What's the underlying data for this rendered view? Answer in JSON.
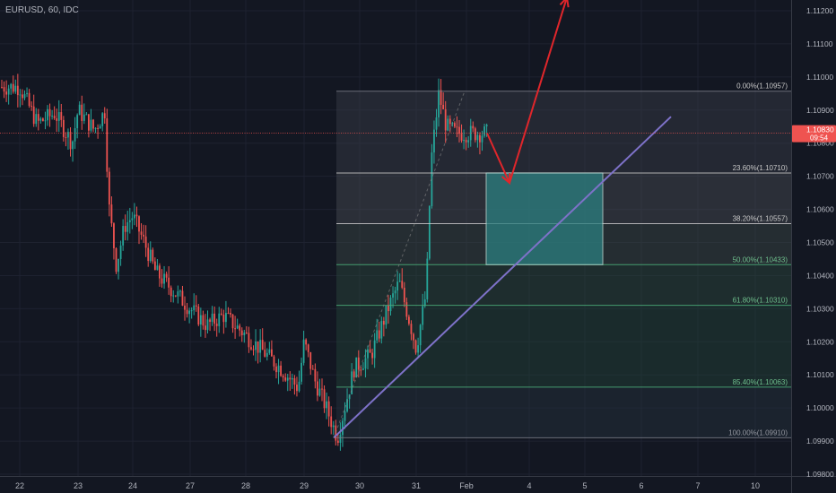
{
  "header": {
    "symbol": "EURUSD, 60, IDC"
  },
  "price_tag": {
    "price": "1.10830",
    "countdown": "09:54"
  },
  "colors": {
    "background": "#131722",
    "grid": "#1e2230",
    "axis_text": "#b2b5be",
    "bull": "#26a69a",
    "bear": "#ef5350",
    "price_line": "#ef5350",
    "trendline": "#7e72c9",
    "arrow": "#e0262b",
    "target_box": "#2b7f80",
    "fib_line": "#6b7280",
    "fib_text": "#8f949d"
  },
  "chart_data": {
    "type": "candlestick",
    "title": "",
    "x_ticks": [
      "22",
      "23",
      "24",
      "27",
      "28",
      "29",
      "30",
      "31",
      "Feb",
      "4",
      "5",
      "6",
      "7",
      "10"
    ],
    "y_ticks": [
      "1.09800",
      "1.09900",
      "1.10000",
      "1.10100",
      "1.10200",
      "1.10300",
      "1.10400",
      "1.10500",
      "1.10600",
      "1.10700",
      "1.10800",
      "1.10900",
      "1.11000",
      "1.11100",
      "1.11200"
    ],
    "ylim": [
      1.098,
      1.1125
    ],
    "current_price": 1.1083,
    "price_path": [
      [
        "22",
        1.1097
      ],
      [
        "22.3",
        1.1086
      ],
      [
        "22.6",
        1.1089
      ],
      [
        "22.9",
        1.108
      ],
      [
        "23",
        1.109
      ],
      [
        "23.3",
        1.1084
      ],
      [
        "23.5",
        1.109
      ],
      [
        "23.55",
        1.1063
      ],
      [
        "23.7",
        1.1043
      ],
      [
        "23.85",
        1.1055
      ],
      [
        "24",
        1.1058
      ],
      [
        "24.2",
        1.105
      ],
      [
        "24.4",
        1.1041
      ],
      [
        "27",
        1.103
      ],
      [
        "27.3",
        1.1025
      ],
      [
        "27.6",
        1.1028
      ],
      [
        "28",
        1.1022
      ],
      [
        "28.3",
        1.1017
      ],
      [
        "28.6",
        1.1012
      ],
      [
        "28.9",
        1.1006
      ],
      [
        "29",
        1.102
      ],
      [
        "29.2",
        1.1008
      ],
      [
        "29.4",
        1.1
      ],
      [
        "29.6",
        1.0991
      ],
      [
        "29.9",
        1.1012
      ],
      [
        "30.2",
        1.1016
      ],
      [
        "30.5",
        1.103
      ],
      [
        "30.7",
        1.1038
      ],
      [
        "30.9",
        1.1025
      ],
      [
        "31",
        1.1018
      ],
      [
        "31.2",
        1.1035
      ],
      [
        "31.3",
        1.1075
      ],
      [
        "31.45",
        1.1095
      ],
      [
        "31.6",
        1.1085
      ],
      [
        "31.8",
        1.1083
      ]
    ],
    "fibonacci": {
      "levels": [
        {
          "label": "0.00%(1.10957)",
          "value": 1.10957
        },
        {
          "label": "23.60%(1.10710)",
          "value": 1.1071
        },
        {
          "label": "38.20%(1.10557)",
          "value": 1.10557
        },
        {
          "label": "50.00%(1.10433)",
          "value": 1.10433
        },
        {
          "label": "61.80%(1.10310)",
          "value": 1.1031
        },
        {
          "label": "85.40%(1.10063)",
          "value": 1.10063
        },
        {
          "label": "100.00%(1.09910)",
          "value": 1.0991
        }
      ]
    },
    "target_zone": {
      "from": 1.10433,
      "to": 1.1071
    },
    "trendline": {
      "from": 1.0991,
      "to": 1.1088
    },
    "projection": [
      {
        "from": 1.1083,
        "to": 1.1068
      },
      {
        "from": 1.1068,
        "to": 1.1124
      }
    ]
  }
}
